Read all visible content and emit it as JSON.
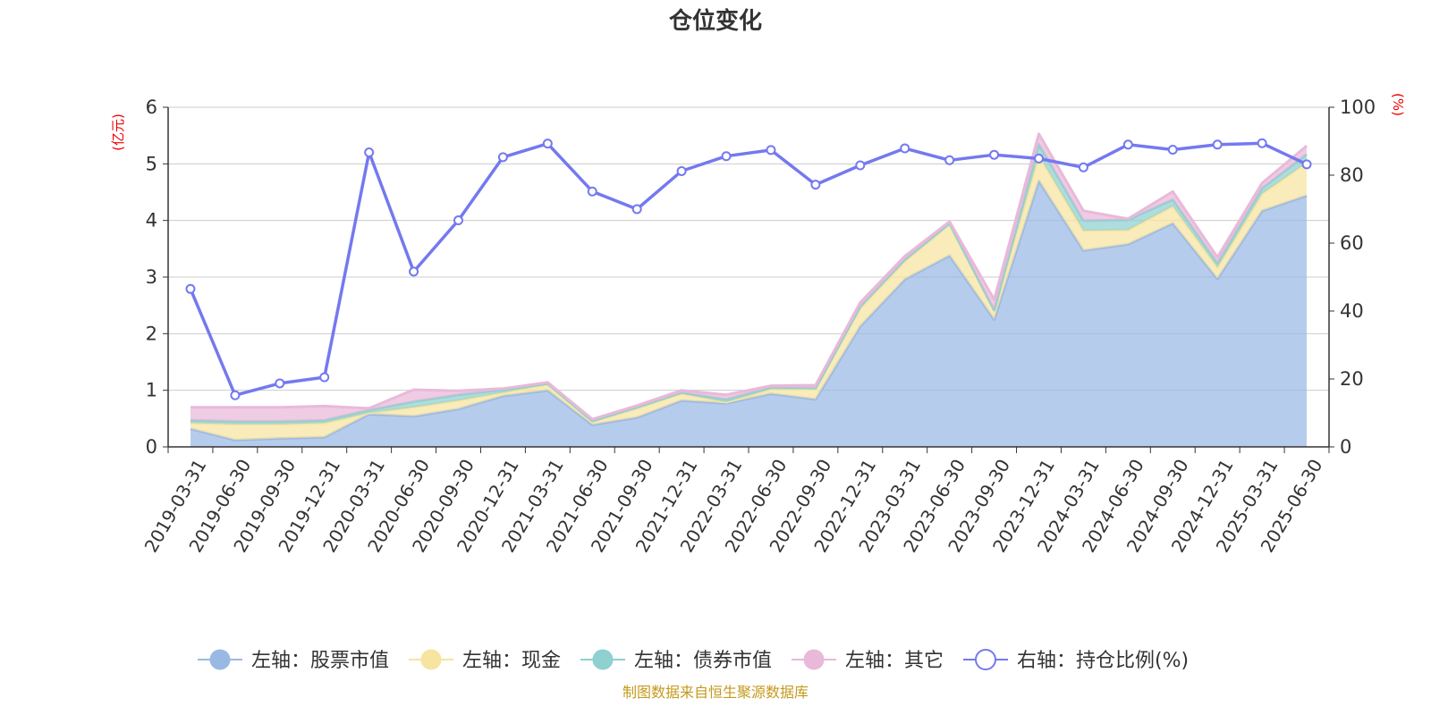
{
  "chart_data": {
    "type": "area",
    "title": "仓位变化",
    "left_unit": "(亿元)",
    "right_unit": "(%)",
    "source": "制图数据来自恒生聚源数据库",
    "left_ylim": [
      0,
      6
    ],
    "left_ticks": [
      "0",
      "1",
      "2",
      "3",
      "4",
      "5",
      "6"
    ],
    "right_ylim": [
      0,
      100
    ],
    "right_ticks": [
      "0",
      "20",
      "40",
      "60",
      "80",
      "100"
    ],
    "grid": true,
    "legend_position": "bottom",
    "categories": [
      "2019-03-31",
      "2019-06-30",
      "2019-09-30",
      "2019-12-31",
      "2020-03-31",
      "2020-06-30",
      "2020-09-30",
      "2020-12-31",
      "2021-03-31",
      "2021-06-30",
      "2021-09-30",
      "2021-12-31",
      "2022-03-31",
      "2022-06-30",
      "2022-09-30",
      "2022-12-31",
      "2023-03-31",
      "2023-06-30",
      "2023-09-30",
      "2023-12-31",
      "2024-03-31",
      "2024-06-30",
      "2024-09-30",
      "2024-12-31",
      "2025-03-31",
      "2025-06-30"
    ],
    "series": [
      {
        "name": "左轴：股票市值",
        "axis": "left",
        "kind": "stack-area",
        "color": "#9ab8e4",
        "values": [
          0.32,
          0.12,
          0.15,
          0.17,
          0.58,
          0.54,
          0.67,
          0.9,
          1.0,
          0.39,
          0.52,
          0.82,
          0.77,
          0.94,
          0.84,
          2.13,
          2.96,
          3.38,
          2.25,
          4.7,
          3.47,
          3.58,
          3.95,
          2.97,
          4.17,
          4.44
        ]
      },
      {
        "name": "左轴：现金",
        "axis": "left",
        "kind": "stack-area",
        "color": "#f6e4a0",
        "values": [
          0.1,
          0.28,
          0.25,
          0.25,
          0.02,
          0.16,
          0.15,
          0.06,
          0.1,
          0.05,
          0.16,
          0.12,
          0.02,
          0.08,
          0.18,
          0.32,
          0.32,
          0.55,
          0.15,
          0.45,
          0.35,
          0.25,
          0.3,
          0.2,
          0.3,
          0.58
        ]
      },
      {
        "name": "左轴：债券市值",
        "axis": "left",
        "kind": "stack-area",
        "color": "#8fd0d1",
        "values": [
          0.05,
          0.05,
          0.05,
          0.05,
          0.05,
          0.1,
          0.1,
          0.05,
          0.02,
          0.02,
          0.02,
          0.02,
          0.05,
          0.03,
          0.02,
          0.03,
          0.03,
          0.02,
          0.02,
          0.2,
          0.18,
          0.18,
          0.12,
          0.08,
          0.1,
          0.15
        ]
      },
      {
        "name": "左轴：其它",
        "axis": "left",
        "kind": "stack-area",
        "color": "#e9b9d9",
        "values": [
          0.23,
          0.25,
          0.25,
          0.25,
          0.03,
          0.21,
          0.07,
          0.02,
          0.02,
          0.03,
          0.03,
          0.04,
          0.08,
          0.03,
          0.05,
          0.07,
          0.06,
          0.03,
          0.18,
          0.18,
          0.17,
          0.02,
          0.14,
          0.1,
          0.09,
          0.15
        ]
      },
      {
        "name": "右轴：持仓比例(%)",
        "axis": "right",
        "kind": "line",
        "color": "#7479ef",
        "values": [
          46.5,
          15.2,
          18.7,
          20.5,
          86.7,
          51.6,
          66.7,
          85.3,
          89.3,
          75.2,
          70.0,
          81.2,
          85.6,
          87.4,
          77.2,
          82.9,
          87.9,
          84.4,
          86.0,
          84.9,
          82.3,
          89.0,
          87.5,
          89.0,
          89.4,
          83.2
        ]
      }
    ]
  }
}
